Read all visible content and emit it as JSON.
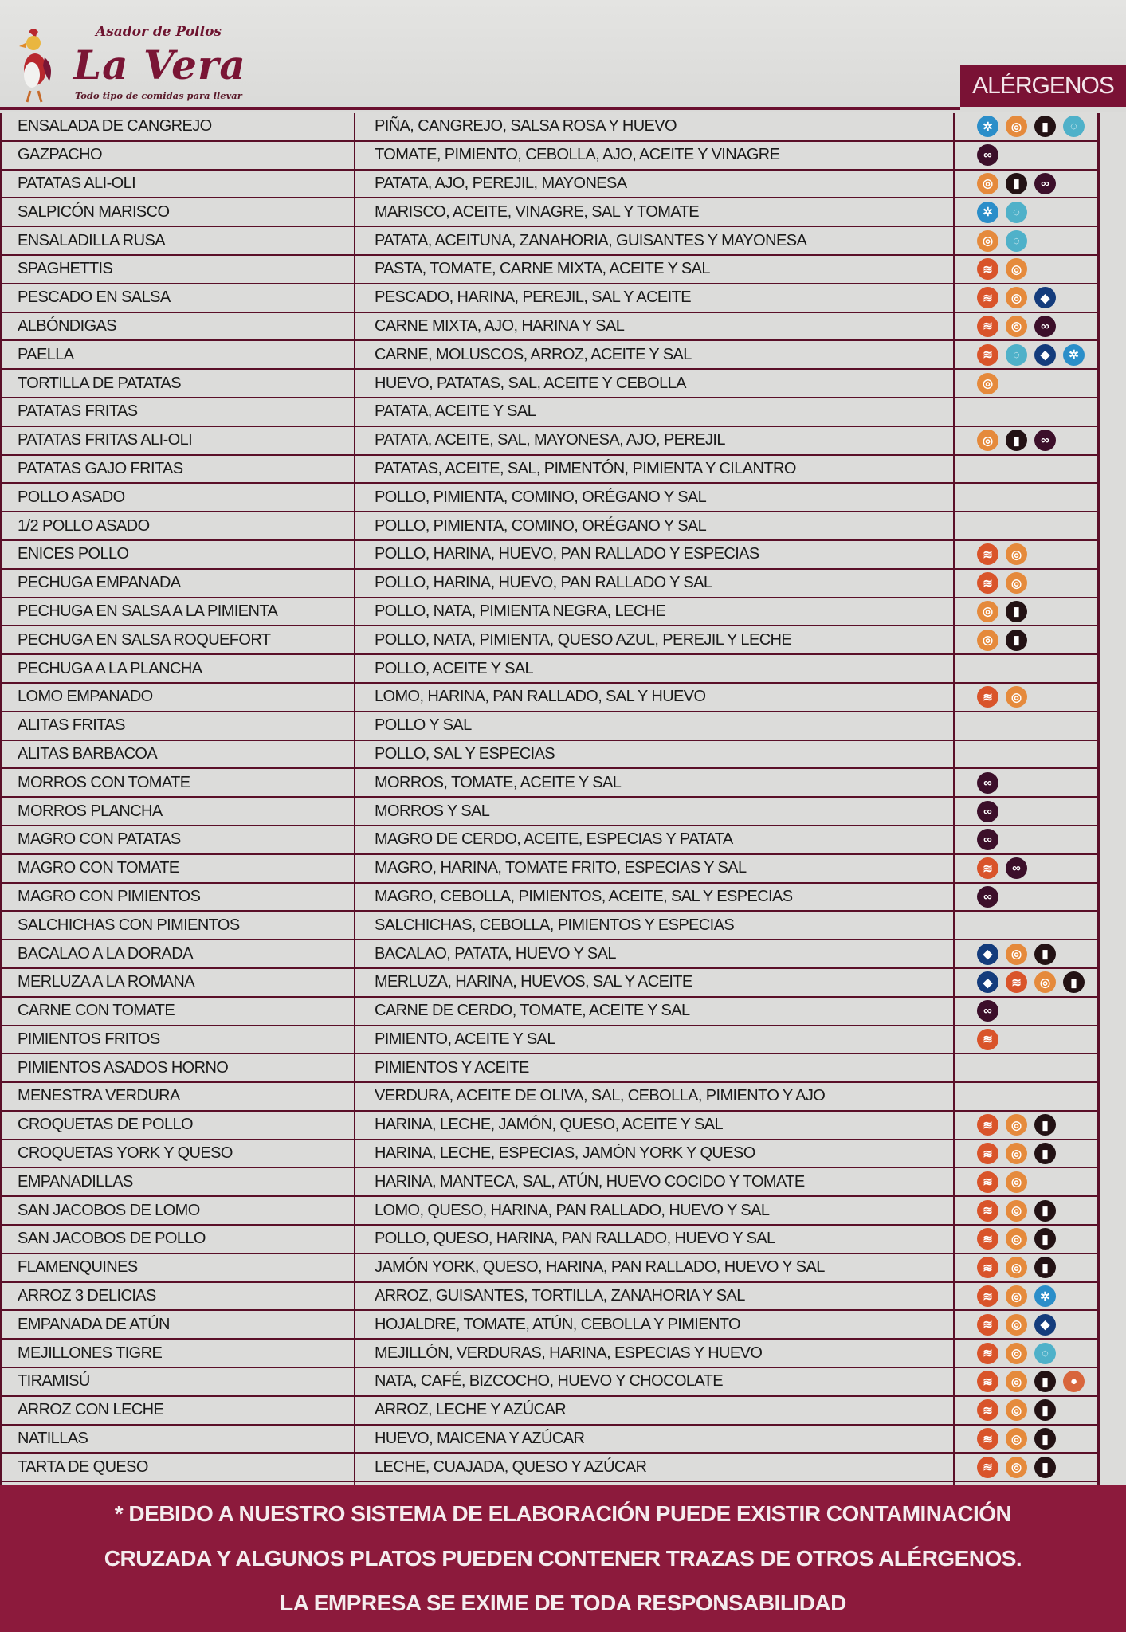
{
  "header": {
    "brand_top": "Asador de Pollos",
    "brand_name": "La Vera",
    "brand_sub": "Todo tipo de comidas para llevar",
    "allergens_title": "ALÉRGENOS"
  },
  "allergen_types": {
    "G": {
      "icon": "gluten-wheat-icon",
      "color": "#d9542a",
      "glyph": "≋"
    },
    "H": {
      "icon": "egg-icon",
      "color": "#e58a3c",
      "glyph": "◎"
    },
    "L": {
      "icon": "milk-jug-icon",
      "color": "#231214",
      "glyph": "▮"
    },
    "C": {
      "icon": "crustacean-crab-icon",
      "color": "#2b8ec9",
      "glyph": "✲"
    },
    "M": {
      "icon": "mollusc-shell-icon",
      "color": "#4fb1c9",
      "glyph": "◌"
    },
    "P": {
      "icon": "fish-icon",
      "color": "#143c7c",
      "glyph": "◆"
    },
    "S": {
      "icon": "sulphites-icon",
      "color": "#3c0f2a",
      "glyph": "∞"
    },
    "N": {
      "icon": "nuts-icon",
      "color": "#d8663c",
      "glyph": "●"
    }
  },
  "rows": [
    {
      "name": "ENSALADA DE CANGREJO",
      "ingredients": "PIÑA, CANGREJO, SALSA ROSA Y HUEVO",
      "allergens": [
        "C",
        "H",
        "L",
        "M"
      ]
    },
    {
      "name": "GAZPACHO",
      "ingredients": "TOMATE, PIMIENTO, CEBOLLA, AJO, ACEITE Y VINAGRE",
      "allergens": [
        "S"
      ]
    },
    {
      "name": "PATATAS ALI-OLI",
      "ingredients": "PATATA, AJO, PEREJIL, MAYONESA",
      "allergens": [
        "H",
        "L",
        "S"
      ]
    },
    {
      "name": "SALPICÓN MARISCO",
      "ingredients": "MARISCO, ACEITE, VINAGRE, SAL Y TOMATE",
      "allergens": [
        "C",
        "M"
      ]
    },
    {
      "name": "ENSALADILLA RUSA",
      "ingredients": "PATATA, ACEITUNA, ZANAHORIA, GUISANTES Y MAYONESA",
      "allergens": [
        "H",
        "M"
      ]
    },
    {
      "name": "SPAGHETTIS",
      "ingredients": "PASTA, TOMATE, CARNE MIXTA, ACEITE Y SAL",
      "allergens": [
        "G",
        "H"
      ]
    },
    {
      "name": "PESCADO EN SALSA",
      "ingredients": "PESCADO, HARINA, PEREJIL, SAL Y ACEITE",
      "allergens": [
        "G",
        "H",
        "P"
      ]
    },
    {
      "name": "ALBÓNDIGAS",
      "ingredients": "CARNE MIXTA, AJO, HARINA Y SAL",
      "allergens": [
        "G",
        "H",
        "S"
      ]
    },
    {
      "name": "PAELLA",
      "ingredients": "CARNE, MOLUSCOS, ARROZ, ACEITE Y SAL",
      "allergens": [
        "G",
        "M",
        "P",
        "C"
      ]
    },
    {
      "name": "TORTILLA DE PATATAS",
      "ingredients": "HUEVO, PATATAS, SAL, ACEITE Y CEBOLLA",
      "allergens": [
        "H"
      ]
    },
    {
      "name": "PATATAS FRITAS",
      "ingredients": "PATATA, ACEITE Y SAL",
      "allergens": []
    },
    {
      "name": "PATATAS FRITAS ALI-OLI",
      "ingredients": "PATATA, ACEITE, SAL, MAYONESA, AJO, PEREJIL",
      "allergens": [
        "H",
        "L",
        "S"
      ]
    },
    {
      "name": "PATATAS GAJO FRITAS",
      "ingredients": "PATATAS, ACEITE, SAL, PIMENTÓN, PIMIENTA Y CILANTRO",
      "allergens": []
    },
    {
      "name": "POLLO ASADO",
      "ingredients": "POLLO, PIMIENTA, COMINO, ORÉGANO Y SAL",
      "allergens": []
    },
    {
      "name": "1/2 POLLO ASADO",
      "ingredients": "POLLO, PIMIENTA, COMINO, ORÉGANO Y SAL",
      "allergens": []
    },
    {
      "name": "ENICES POLLO",
      "ingredients": "POLLO, HARINA, HUEVO, PAN RALLADO Y ESPECIAS",
      "allergens": [
        "G",
        "H"
      ]
    },
    {
      "name": "PECHUGA EMPANADA",
      "ingredients": "POLLO, HARINA, HUEVO, PAN RALLADO Y SAL",
      "allergens": [
        "G",
        "H"
      ]
    },
    {
      "name": "PECHUGA EN SALSA A LA PIMIENTA",
      "ingredients": "POLLO, NATA, PIMIENTA NEGRA, LECHE",
      "allergens": [
        "H",
        "L"
      ]
    },
    {
      "name": "PECHUGA EN SALSA ROQUEFORT",
      "ingredients": "POLLO, NATA, PIMIENTA, QUESO AZUL, PEREJIL Y LECHE",
      "allergens": [
        "H",
        "L"
      ]
    },
    {
      "name": "PECHUGA A LA PLANCHA",
      "ingredients": "POLLO, ACEITE Y SAL",
      "allergens": []
    },
    {
      "name": "LOMO EMPANADO",
      "ingredients": "LOMO, HARINA, PAN RALLADO, SAL Y HUEVO",
      "allergens": [
        "G",
        "H"
      ]
    },
    {
      "name": "ALITAS FRITAS",
      "ingredients": "POLLO Y SAL",
      "allergens": []
    },
    {
      "name": "ALITAS BARBACOA",
      "ingredients": "POLLO, SAL Y ESPECIAS",
      "allergens": []
    },
    {
      "name": "MORROS CON TOMATE",
      "ingredients": "MORROS, TOMATE, ACEITE Y SAL",
      "allergens": [
        "S"
      ]
    },
    {
      "name": "MORROS PLANCHA",
      "ingredients": "MORROS Y SAL",
      "allergens": [
        "S"
      ]
    },
    {
      "name": "MAGRO CON PATATAS",
      "ingredients": "MAGRO DE CERDO, ACEITE, ESPECIAS Y PATATA",
      "allergens": [
        "S"
      ]
    },
    {
      "name": "MAGRO CON TOMATE",
      "ingredients": "MAGRO, HARINA, TOMATE FRITO, ESPECIAS Y SAL",
      "allergens": [
        "G",
        "S"
      ]
    },
    {
      "name": "MAGRO CON PIMIENTOS",
      "ingredients": "MAGRO, CEBOLLA, PIMIENTOS, ACEITE, SAL Y ESPECIAS",
      "allergens": [
        "S"
      ]
    },
    {
      "name": "SALCHICHAS CON PIMIENTOS",
      "ingredients": "SALCHICHAS, CEBOLLA, PIMIENTOS Y ESPECIAS",
      "allergens": []
    },
    {
      "name": "BACALAO A LA DORADA",
      "ingredients": "BACALAO, PATATA, HUEVO Y SAL",
      "allergens": [
        "P",
        "H",
        "L"
      ]
    },
    {
      "name": "MERLUZA A LA ROMANA",
      "ingredients": "MERLUZA, HARINA, HUEVOS, SAL Y ACEITE",
      "allergens": [
        "P",
        "G",
        "H",
        "L"
      ]
    },
    {
      "name": "CARNE CON TOMATE",
      "ingredients": "CARNE DE CERDO, TOMATE, ACEITE Y SAL",
      "allergens": [
        "S"
      ]
    },
    {
      "name": "PIMIENTOS FRITOS",
      "ingredients": "PIMIENTO, ACEITE Y SAL",
      "allergens": [
        "G"
      ]
    },
    {
      "name": "PIMIENTOS ASADOS HORNO",
      "ingredients": "PIMIENTOS Y ACEITE",
      "allergens": []
    },
    {
      "name": "MENESTRA VERDURA",
      "ingredients": "VERDURA, ACEITE DE OLIVA, SAL, CEBOLLA, PIMIENTO Y AJO",
      "allergens": []
    },
    {
      "name": "CROQUETAS DE POLLO",
      "ingredients": "HARINA, LECHE, JAMÓN, QUESO, ACEITE Y SAL",
      "allergens": [
        "G",
        "H",
        "L"
      ]
    },
    {
      "name": "CROQUETAS YORK Y QUESO",
      "ingredients": "HARINA, LECHE, ESPECIAS, JAMÓN YORK Y QUESO",
      "allergens": [
        "G",
        "H",
        "L"
      ]
    },
    {
      "name": "EMPANADILLAS",
      "ingredients": "HARINA, MANTECA, SAL, ATÚN, HUEVO COCIDO Y TOMATE",
      "allergens": [
        "G",
        "H"
      ]
    },
    {
      "name": "SAN JACOBOS DE LOMO",
      "ingredients": "LOMO, QUESO, HARINA, PAN RALLADO, HUEVO Y SAL",
      "allergens": [
        "G",
        "H",
        "L"
      ]
    },
    {
      "name": "SAN JACOBOS DE POLLO",
      "ingredients": "POLLO, QUESO, HARINA, PAN RALLADO, HUEVO Y SAL",
      "allergens": [
        "G",
        "H",
        "L"
      ]
    },
    {
      "name": "FLAMENQUINES",
      "ingredients": "JAMÓN YORK, QUESO, HARINA, PAN RALLADO, HUEVO Y SAL",
      "allergens": [
        "G",
        "H",
        "L"
      ]
    },
    {
      "name": "ARROZ 3 DELICIAS",
      "ingredients": "ARROZ, GUISANTES, TORTILLA, ZANAHORIA Y SAL",
      "allergens": [
        "G",
        "H",
        "C"
      ]
    },
    {
      "name": "EMPANADA DE ATÚN",
      "ingredients": "HOJALDRE, TOMATE, ATÚN, CEBOLLA Y PIMIENTO",
      "allergens": [
        "G",
        "H",
        "P"
      ]
    },
    {
      "name": "MEJILLONES TIGRE",
      "ingredients": "MEJILLÓN, VERDURAS, HARINA, ESPECIAS Y HUEVO",
      "allergens": [
        "G",
        "H",
        "M"
      ]
    },
    {
      "name": "TIRAMISÚ",
      "ingredients": "NATA, CAFÉ, BIZCOCHO, HUEVO Y CHOCOLATE",
      "allergens": [
        "G",
        "H",
        "L",
        "N"
      ]
    },
    {
      "name": "ARROZ CON LECHE",
      "ingredients": "ARROZ, LECHE Y AZÚCAR",
      "allergens": [
        "G",
        "H",
        "L"
      ]
    },
    {
      "name": "NATILLAS",
      "ingredients": "HUEVO, MAICENA Y AZÚCAR",
      "allergens": [
        "G",
        "H",
        "L"
      ]
    },
    {
      "name": "TARTA DE QUESO",
      "ingredients": "LECHE, CUAJADA, QUESO Y AZÚCAR",
      "allergens": [
        "G",
        "H",
        "L"
      ]
    }
  ],
  "footer": {
    "line1": "* DEBIDO A NUESTRO SISTEMA DE ELABORACIÓN PUEDE EXISTIR CONTAMINACIÓN",
    "line2": "CRUZADA Y ALGUNOS PLATOS PUEDEN CONTENER TRAZAS DE OTROS ALÉRGENOS.",
    "line3": "LA EMPRESA SE EXIME DE TODA RESPONSABILIDAD"
  },
  "colors": {
    "brand": "#7a1235",
    "rule": "#5a0f28",
    "background": "#dcdcda"
  }
}
